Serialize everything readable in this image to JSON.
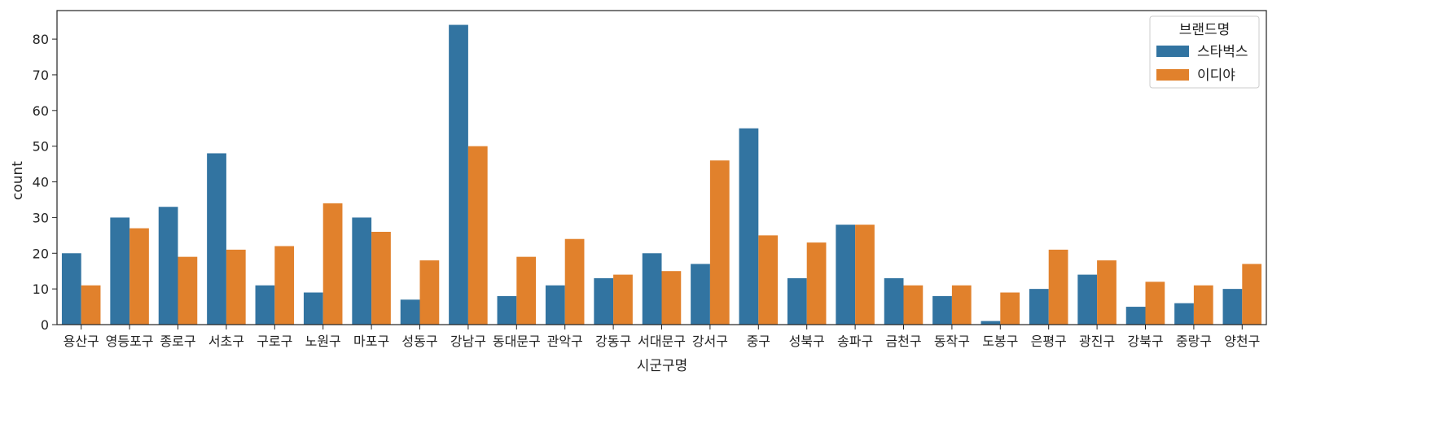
{
  "chart_data": {
    "type": "bar",
    "xlabel": "시군구명",
    "ylabel": "count",
    "ylim": [
      0,
      88
    ],
    "yticks": [
      0,
      10,
      20,
      30,
      40,
      50,
      60,
      70,
      80
    ],
    "categories": [
      "용산구",
      "영등포구",
      "종로구",
      "서초구",
      "구로구",
      "노원구",
      "마포구",
      "성동구",
      "강남구",
      "동대문구",
      "관악구",
      "강동구",
      "서대문구",
      "강서구",
      "중구",
      "성북구",
      "송파구",
      "금천구",
      "동작구",
      "도봉구",
      "은평구",
      "광진구",
      "강북구",
      "중랑구",
      "양천구"
    ],
    "series": [
      {
        "name": "스타벅스",
        "color": "#3274a1",
        "values": [
          20,
          30,
          33,
          48,
          11,
          9,
          30,
          7,
          84,
          8,
          11,
          13,
          20,
          17,
          55,
          13,
          28,
          13,
          8,
          1,
          10,
          14,
          5,
          6,
          10
        ]
      },
      {
        "name": "이디야",
        "color": "#e1812c",
        "values": [
          11,
          27,
          19,
          21,
          22,
          34,
          26,
          18,
          50,
          19,
          24,
          14,
          15,
          46,
          25,
          23,
          28,
          11,
          11,
          9,
          21,
          18,
          12,
          11,
          17
        ]
      }
    ],
    "legend": {
      "title": "브랜드명",
      "placement": "top-right"
    },
    "grid": false
  }
}
